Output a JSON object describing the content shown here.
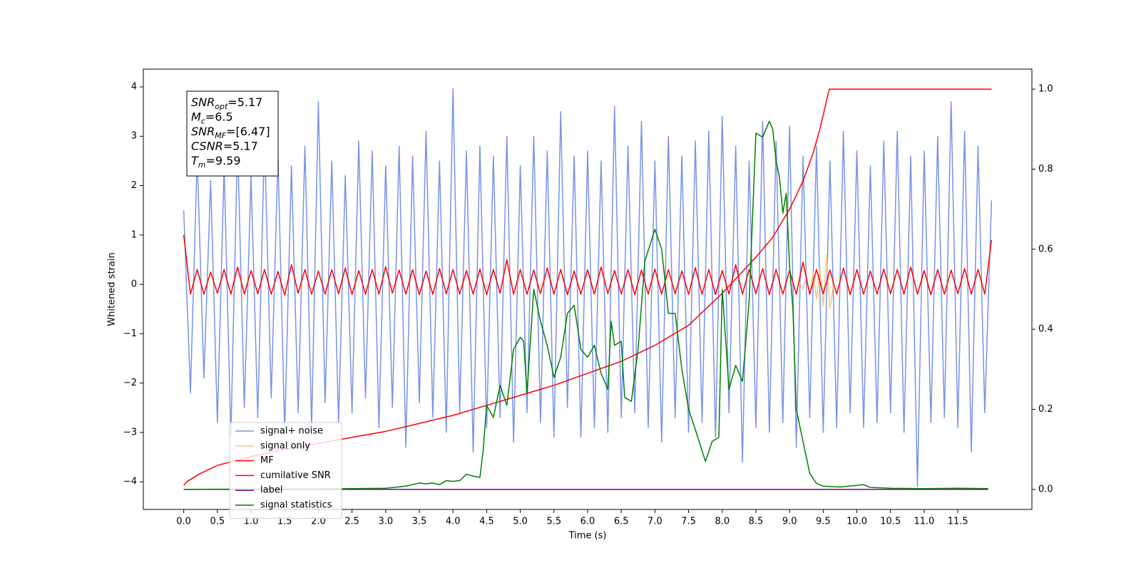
{
  "chart_data": {
    "type": "line",
    "xlabel": "Time (s)",
    "ylabel": "Whitened strain",
    "xlim": [
      -0.6,
      12.6
    ],
    "ylim": [
      -4.56,
      4.36
    ],
    "y2lim": [
      -0.05,
      1.05
    ],
    "xticks": [
      {
        "value": 0,
        "label": "0.0"
      },
      {
        "value": 0.5,
        "label": "0.5"
      },
      {
        "value": 1,
        "label": "1.0"
      },
      {
        "value": 1.5,
        "label": "1.5"
      },
      {
        "value": 2,
        "label": "2.0"
      },
      {
        "value": 2.5,
        "label": "2.5"
      },
      {
        "value": 3,
        "label": "3.0"
      },
      {
        "value": 3.5,
        "label": "3.5"
      },
      {
        "value": 4,
        "label": "4.0"
      },
      {
        "value": 4.5,
        "label": "4.5"
      },
      {
        "value": 5,
        "label": "5.0"
      },
      {
        "value": 5.5,
        "label": "5.5"
      },
      {
        "value": 6,
        "label": "6.0"
      },
      {
        "value": 6.5,
        "label": "6.5"
      },
      {
        "value": 7,
        "label": "7.0"
      },
      {
        "value": 7.5,
        "label": "7.5"
      },
      {
        "value": 8,
        "label": "8.0"
      },
      {
        "value": 8.5,
        "label": "8.5"
      },
      {
        "value": 9,
        "label": "9.0"
      },
      {
        "value": 9.5,
        "label": "9.5"
      },
      {
        "value": 10,
        "label": "10.0"
      },
      {
        "value": 10.5,
        "label": "10.5"
      },
      {
        "value": 11,
        "label": "11.0"
      },
      {
        "value": 11.5,
        "label": "11.5"
      }
    ],
    "yticks": [
      {
        "value": -4,
        "label": "−4"
      },
      {
        "value": -3,
        "label": "−3"
      },
      {
        "value": -2,
        "label": "−2"
      },
      {
        "value": -1,
        "label": "−1"
      },
      0,
      1,
      2,
      3,
      4
    ],
    "y2ticks": [
      {
        "value": 0,
        "label": "0.0"
      },
      {
        "value": 0.2,
        "label": "0.2"
      },
      {
        "value": 0.4,
        "label": "0.4"
      },
      {
        "value": 0.6,
        "label": "0.6"
      },
      {
        "value": 0.8,
        "label": "0.8"
      },
      {
        "value": 1,
        "label": "1.0"
      }
    ],
    "grid": false,
    "legend": "lower left",
    "annotation": [
      {
        "symbol": "SNR",
        "subscript": "opt",
        "text": "=5.17"
      },
      {
        "symbol": "M",
        "subscript": "c",
        "text": "=6.5"
      },
      {
        "symbol": "SNR",
        "subscript": "MF",
        "text": "=[6.47]"
      },
      {
        "symbol": "CSNR",
        "text": "=5.17"
      },
      {
        "symbol": "T",
        "subscript": "m",
        "text": "=9.59"
      }
    ],
    "x": [
      0,
      0.1,
      0.2,
      0.3,
      0.4,
      0.5,
      0.6,
      0.7,
      0.8,
      0.9,
      1,
      1.1,
      1.2,
      1.3,
      1.4,
      1.5,
      1.6,
      1.7,
      1.8,
      1.9,
      2,
      2.1,
      2.2,
      2.3,
      2.4,
      2.5,
      2.6,
      2.7,
      2.8,
      2.9,
      3,
      3.1,
      3.2,
      3.3,
      3.4,
      3.5,
      3.6,
      3.7,
      3.8,
      3.9,
      4,
      4.1,
      4.2,
      4.3,
      4.4,
      4.5,
      4.6,
      4.7,
      4.8,
      4.9,
      5,
      5.1,
      5.2,
      5.3,
      5.4,
      5.5,
      5.6,
      5.7,
      5.8,
      5.9,
      6,
      6.1,
      6.2,
      6.3,
      6.4,
      6.5,
      6.6,
      6.7,
      6.8,
      6.9,
      7,
      7.1,
      7.2,
      7.3,
      7.4,
      7.5,
      7.6,
      7.7,
      7.8,
      7.9,
      8,
      8.1,
      8.2,
      8.3,
      8.4,
      8.5,
      8.6,
      8.7,
      8.8,
      8.9,
      9,
      9.1,
      9.2,
      9.3,
      9.4,
      9.5,
      9.6,
      9.7,
      9.8,
      9.9,
      10,
      10.1,
      10.2,
      10.3,
      10.4,
      10.5,
      10.6,
      10.7,
      10.8,
      10.9,
      11,
      11.1,
      11.2,
      11.3,
      11.4,
      11.5,
      11.6,
      11.7,
      11.8,
      11.9,
      12
    ],
    "series": [
      {
        "name": "signal+ noise",
        "color": "#7893e8",
        "values": [
          1.5,
          -2.2,
          2.6,
          -1.9,
          2.1,
          -2.8,
          2.4,
          -3.1,
          2.9,
          -2.5,
          2.2,
          -2.7,
          3.0,
          -2.3,
          2.6,
          -3.0,
          2.4,
          -2.6,
          2.8,
          -2.9,
          3.7,
          -2.4,
          2.5,
          -2.8,
          2.2,
          -2.6,
          2.9,
          -2.3,
          2.7,
          -2.9,
          2.4,
          -2.5,
          2.8,
          -3.3,
          2.6,
          -2.4,
          3.1,
          -2.7,
          2.5,
          -3.0,
          3.96,
          -2.6,
          2.7,
          -3.4,
          2.8,
          -2.9,
          2.6,
          -2.7,
          3.0,
          -3.2,
          2.4,
          -2.6,
          3.0,
          -2.8,
          2.7,
          -3.1,
          3.5,
          -2.5,
          2.6,
          -3.1,
          2.7,
          -2.9,
          2.5,
          -3.0,
          3.6,
          -2.7,
          2.8,
          -2.6,
          3.3,
          -2.9,
          2.5,
          -3.2,
          3.0,
          -2.7,
          2.6,
          -3.0,
          2.9,
          -2.8,
          3.1,
          -3.1,
          3.4,
          -2.6,
          2.8,
          -3.6,
          2.5,
          -2.9,
          3.3,
          -3.0,
          2.9,
          -2.8,
          3.2,
          -3.3,
          2.6,
          -2.7,
          2.8,
          -3.0,
          2.5,
          -2.9,
          3.1,
          -2.6,
          2.7,
          -2.9,
          2.4,
          -2.8,
          2.9,
          -2.6,
          3.1,
          -3.0,
          2.6,
          -4.1,
          2.7,
          -2.8,
          3.0,
          -2.7,
          3.7,
          -2.9,
          3.1,
          -3.4,
          2.8,
          -2.6,
          1.7
        ]
      },
      {
        "name": "signal only",
        "color": "#f7c97f",
        "x": [
          9.15,
          9.2,
          9.25,
          9.3,
          9.35,
          9.4,
          9.45,
          9.5,
          9.55,
          9.6,
          9.65
        ],
        "values": [
          0.05,
          -0.1,
          0.15,
          -0.2,
          0.25,
          -0.3,
          0.35,
          -0.45,
          0.6,
          -0.5,
          0.0
        ]
      },
      {
        "name": "MF",
        "color": "red",
        "values": [
          1.0,
          -0.2,
          0.3,
          -0.2,
          0.25,
          -0.18,
          0.3,
          -0.2,
          0.35,
          -0.2,
          0.28,
          -0.19,
          0.3,
          -0.2,
          0.26,
          -0.22,
          0.4,
          -0.18,
          0.3,
          -0.2,
          0.27,
          -0.2,
          0.3,
          -0.19,
          0.33,
          -0.21,
          0.28,
          -0.2,
          0.3,
          -0.2,
          0.36,
          -0.18,
          0.29,
          -0.2,
          0.3,
          -0.21,
          0.27,
          -0.2,
          0.32,
          -0.19,
          0.3,
          -0.2,
          0.28,
          -0.2,
          0.31,
          -0.21,
          0.3,
          -0.18,
          0.5,
          -0.2,
          0.3,
          -0.2,
          0.29,
          -0.19,
          0.33,
          -0.2,
          0.3,
          -0.21,
          0.27,
          -0.2,
          0.3,
          -0.2,
          0.35,
          -0.19,
          0.28,
          -0.2,
          0.3,
          -0.21,
          0.29,
          -0.2,
          0.31,
          -0.2,
          0.3,
          -0.19,
          0.27,
          -0.2,
          0.34,
          -0.2,
          0.3,
          -0.21,
          0.28,
          -0.2,
          0.4,
          -0.2,
          0.3,
          -0.19,
          0.32,
          -0.21,
          0.3,
          -0.2,
          0.28,
          -0.2,
          0.45,
          -0.2,
          0.3,
          -0.19,
          0.29,
          -0.2,
          0.33,
          -0.21,
          0.3,
          -0.2,
          0.27,
          -0.2,
          0.31,
          -0.19,
          0.3,
          -0.2,
          0.35,
          -0.2,
          0.28,
          -0.21,
          0.3,
          -0.2,
          0.29,
          -0.19,
          0.32,
          -0.2,
          0.3,
          -0.2,
          0.9
        ]
      },
      {
        "name": "cumilative SNR",
        "color": "red",
        "axis": "y2",
        "x": [
          0,
          0.05,
          0.25,
          0.5,
          1,
          1.5,
          2,
          2.5,
          3,
          3.5,
          4,
          4.5,
          5,
          5.5,
          6,
          6.5,
          7,
          7.5,
          8,
          8.5,
          8.75,
          9,
          9.2,
          9.35,
          9.45,
          9.52,
          9.59,
          10,
          11,
          12
        ],
        "values": [
          0.01,
          0.02,
          0.04,
          0.06,
          0.082,
          0.1,
          0.115,
          0.13,
          0.145,
          0.165,
          0.185,
          0.21,
          0.235,
          0.26,
          0.29,
          0.32,
          0.36,
          0.41,
          0.49,
          0.58,
          0.63,
          0.7,
          0.77,
          0.84,
          0.9,
          0.95,
          1.0,
          1.0,
          1.0,
          1.0
        ]
      },
      {
        "name": "label",
        "color": "purple",
        "axis": "y2",
        "x": [
          0,
          11.95
        ],
        "values": [
          0,
          0
        ]
      },
      {
        "name": "signal statistics",
        "color": "green",
        "axis": "y2",
        "x": [
          0,
          1,
          2,
          2.5,
          3,
          3.3,
          3.5,
          3.6,
          3.7,
          3.8,
          3.9,
          4.0,
          4.1,
          4.2,
          4.3,
          4.4,
          4.45,
          4.5,
          4.6,
          4.7,
          4.8,
          4.9,
          5.0,
          5.05,
          5.1,
          5.2,
          5.3,
          5.4,
          5.5,
          5.6,
          5.7,
          5.8,
          5.9,
          6.0,
          6.1,
          6.2,
          6.3,
          6.35,
          6.4,
          6.5,
          6.55,
          6.65,
          6.75,
          6.85,
          7.0,
          7.1,
          7.2,
          7.3,
          7.4,
          7.5,
          7.6,
          7.75,
          7.85,
          7.95,
          8.0,
          8.1,
          8.2,
          8.3,
          8.4,
          8.5,
          8.6,
          8.7,
          8.75,
          8.8,
          8.85,
          8.9,
          8.95,
          9.0,
          9.05,
          9.1,
          9.2,
          9.3,
          9.4,
          9.5,
          9.75,
          10.0,
          10.1,
          10.2,
          10.5,
          11.0,
          11.5,
          11.95
        ],
        "values": [
          0.0,
          0.001,
          0.001,
          0.002,
          0.003,
          0.008,
          0.016,
          0.014,
          0.016,
          0.012,
          0.022,
          0.02,
          0.022,
          0.038,
          0.033,
          0.03,
          0.1,
          0.21,
          0.18,
          0.26,
          0.21,
          0.35,
          0.38,
          0.37,
          0.24,
          0.5,
          0.42,
          0.36,
          0.28,
          0.33,
          0.44,
          0.46,
          0.35,
          0.33,
          0.36,
          0.29,
          0.25,
          0.42,
          0.36,
          0.37,
          0.23,
          0.22,
          0.35,
          0.57,
          0.65,
          0.6,
          0.44,
          0.44,
          0.3,
          0.2,
          0.15,
          0.07,
          0.12,
          0.13,
          0.5,
          0.25,
          0.31,
          0.27,
          0.47,
          0.89,
          0.88,
          0.92,
          0.9,
          0.82,
          0.78,
          0.69,
          0.74,
          0.56,
          0.45,
          0.2,
          0.12,
          0.04,
          0.015,
          0.008,
          0.006,
          0.01,
          0.012,
          0.005,
          0.003,
          0.002,
          0.003,
          0.002
        ]
      }
    ]
  }
}
